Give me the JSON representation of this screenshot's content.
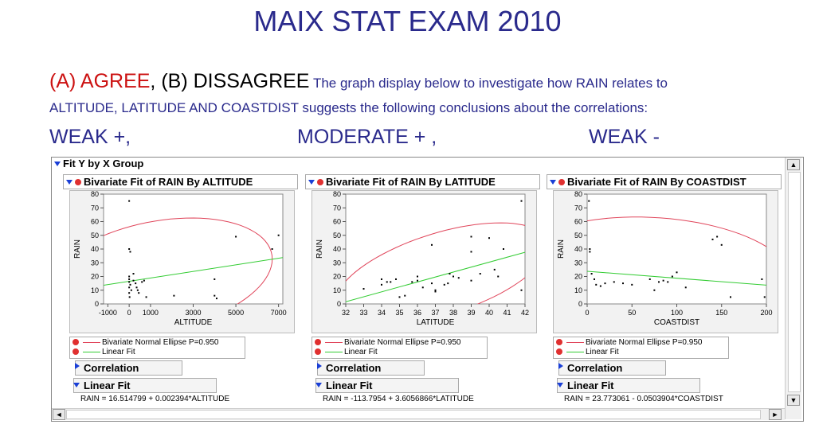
{
  "slide": {
    "title": "MAIX STAT EXAM 2010",
    "option_a": "(A) AGREE",
    "option_sep": ", ",
    "option_b": "(B) DISSAGREE",
    "question_part1": "The graph display below to investigate how RAIN relates to",
    "question_part2": "ALTITUDE, LATITUDE AND COASTDIST suggests the following conclusions about the correlations:",
    "answers": [
      "WEAK +,",
      "MODERATE + ,",
      "WEAK -"
    ]
  },
  "window": {
    "group_title": "Fit Y by X Group",
    "legend_ellipse": "Bivariate Normal Ellipse P=0.950",
    "legend_linear": "Linear Fit",
    "correlation_label": "Correlation",
    "linear_fit_label": "Linear Fit",
    "scroll_up": "▲",
    "scroll_down": "▼",
    "scroll_left": "◄",
    "scroll_right": "►"
  },
  "colors": {
    "title_blue": "#2a2a8c",
    "agree_red": "#cc1111",
    "ellipse": "#e0455a",
    "fit_line": "#33cc33",
    "disclosure": "#1a3fd6"
  },
  "chart_data": [
    {
      "type": "scatter",
      "panel_title": "Bivariate Fit of RAIN By ALTITUDE",
      "xlabel": "ALTITUDE",
      "ylabel": "RAIN",
      "xlim": [
        -1200,
        7200
      ],
      "ylim": [
        0,
        80
      ],
      "xticks": [
        -1000,
        0,
        1000,
        3000,
        5000,
        7000
      ],
      "xtick_labels": [
        "-1000",
        "0",
        "1000",
        "3000",
        "5000",
        "7000"
      ],
      "yticks": [
        0,
        10,
        20,
        30,
        40,
        50,
        60,
        70,
        80
      ],
      "points": [
        [
          0,
          75
        ],
        [
          0,
          40
        ],
        [
          50,
          38
        ],
        [
          0,
          20
        ],
        [
          0,
          18
        ],
        [
          0,
          16
        ],
        [
          50,
          14
        ],
        [
          0,
          12
        ],
        [
          100,
          10
        ],
        [
          0,
          8
        ],
        [
          20,
          5
        ],
        [
          200,
          22
        ],
        [
          200,
          17
        ],
        [
          300,
          15
        ],
        [
          350,
          12
        ],
        [
          400,
          10
        ],
        [
          450,
          8
        ],
        [
          600,
          16
        ],
        [
          700,
          17
        ],
        [
          800,
          5
        ],
        [
          2100,
          6
        ],
        [
          4000,
          18
        ],
        [
          4000,
          6
        ],
        [
          4100,
          4
        ],
        [
          5000,
          49
        ],
        [
          6700,
          40
        ],
        [
          7000,
          50
        ]
      ],
      "fit_equation": "RAIN = 16.514799 + 0.002394*ALTITUDE",
      "fit_intercept": 16.514799,
      "fit_slope": 0.002394
    },
    {
      "type": "scatter",
      "panel_title": "Bivariate Fit of RAIN By LATITUDE",
      "xlabel": "LATITUDE",
      "ylabel": "RAIN",
      "xlim": [
        32,
        42
      ],
      "ylim": [
        0,
        80
      ],
      "xticks": [
        32,
        33,
        34,
        35,
        36,
        37,
        38,
        39,
        40,
        41,
        42
      ],
      "xtick_labels": [
        "32",
        "33",
        "34",
        "35",
        "36",
        "37",
        "38",
        "39",
        "40",
        "41",
        "42"
      ],
      "yticks": [
        0,
        10,
        20,
        30,
        40,
        50,
        60,
        70,
        80
      ],
      "points": [
        [
          33,
          11
        ],
        [
          34,
          18
        ],
        [
          34,
          14
        ],
        [
          34.3,
          16
        ],
        [
          34.5,
          16
        ],
        [
          34.8,
          18
        ],
        [
          35,
          5
        ],
        [
          35.3,
          6
        ],
        [
          35.7,
          16
        ],
        [
          36,
          20
        ],
        [
          36,
          17
        ],
        [
          36.3,
          12
        ],
        [
          36.8,
          43
        ],
        [
          36.8,
          15
        ],
        [
          37,
          10
        ],
        [
          37,
          9
        ],
        [
          37.5,
          14
        ],
        [
          37.7,
          15
        ],
        [
          37.8,
          22
        ],
        [
          38,
          20
        ],
        [
          38.3,
          19
        ],
        [
          39,
          38
        ],
        [
          39,
          49
        ],
        [
          39,
          17
        ],
        [
          39.5,
          22
        ],
        [
          40,
          48
        ],
        [
          40.3,
          25
        ],
        [
          40.5,
          20
        ],
        [
          40.8,
          40
        ],
        [
          41.8,
          75
        ],
        [
          41.8,
          10
        ]
      ],
      "fit_equation": "RAIN = -113.7954 + 3.6056866*LATITUDE",
      "fit_intercept": -113.7954,
      "fit_slope": 3.6056866
    },
    {
      "type": "scatter",
      "panel_title": "Bivariate Fit of RAIN By COASTDIST",
      "xlabel": "COASTDIST",
      "ylabel": "RAIN",
      "xlim": [
        0,
        200
      ],
      "ylim": [
        0,
        80
      ],
      "xticks": [
        0,
        50,
        100,
        150,
        200
      ],
      "xtick_labels": [
        "0",
        "50",
        "100",
        "150",
        "200"
      ],
      "yticks": [
        0,
        10,
        20,
        30,
        40,
        50,
        60,
        70,
        80
      ],
      "points": [
        [
          2,
          75
        ],
        [
          3,
          40
        ],
        [
          3,
          38
        ],
        [
          5,
          22
        ],
        [
          8,
          18
        ],
        [
          10,
          14
        ],
        [
          15,
          13
        ],
        [
          20,
          15
        ],
        [
          30,
          16
        ],
        [
          40,
          15
        ],
        [
          50,
          14
        ],
        [
          70,
          18
        ],
        [
          75,
          10
        ],
        [
          80,
          16
        ],
        [
          85,
          17
        ],
        [
          90,
          16
        ],
        [
          95,
          20
        ],
        [
          100,
          23
        ],
        [
          110,
          12
        ],
        [
          140,
          47
        ],
        [
          145,
          49
        ],
        [
          150,
          43
        ],
        [
          160,
          5
        ],
        [
          195,
          18
        ],
        [
          198,
          5
        ]
      ],
      "fit_equation": "RAIN = 23.773061 - 0.0503904*COASTDIST",
      "fit_intercept": 23.773061,
      "fit_slope": -0.0503904
    }
  ]
}
